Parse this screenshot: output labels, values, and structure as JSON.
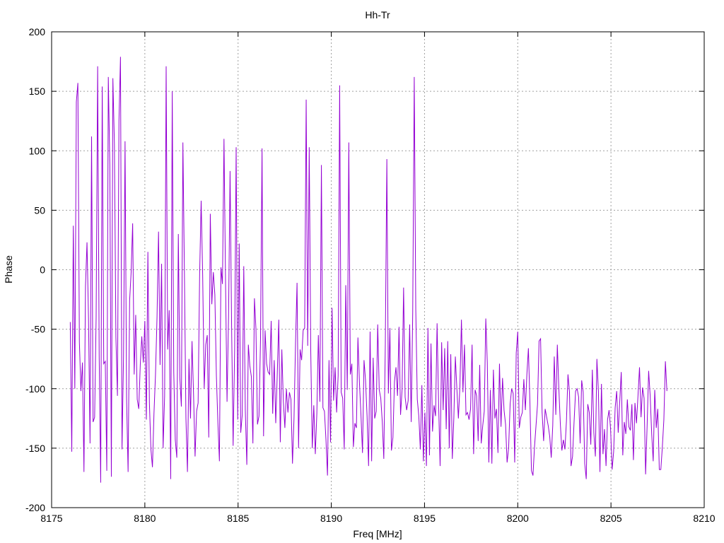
{
  "chart_data": {
    "type": "line",
    "title": "Hh-Tr",
    "xlabel": "Freq [MHz]",
    "ylabel": "Phase",
    "xlim": [
      8175,
      8210
    ],
    "ylim": [
      -200,
      200
    ],
    "x_ticks": [
      8175,
      8180,
      8185,
      8190,
      8195,
      8200,
      8205,
      8210
    ],
    "y_ticks": [
      -200,
      -150,
      -100,
      -50,
      0,
      50,
      100,
      150,
      200
    ],
    "grid": true,
    "line_color": "#9400d3",
    "series": [
      {
        "x_start": 8176.0,
        "x_end": 8208.0,
        "values": [
          -44,
          -153,
          37,
          -100,
          141,
          157,
          -61,
          -102,
          -78,
          -170,
          -14,
          23,
          -41,
          -146,
          112,
          -128,
          -124,
          -40,
          171,
          -72,
          -179,
          154,
          -79,
          -77,
          -169,
          162,
          88,
          -174,
          161,
          106,
          -57,
          -106,
          125,
          179,
          -151,
          -73,
          108,
          -108,
          -170,
          -26,
          -2,
          39,
          -88,
          -38,
          -109,
          -117,
          -80,
          -56,
          -78,
          -43,
          -126,
          15,
          -112,
          -151,
          -166,
          -121,
          -88,
          -40,
          32,
          -80,
          5,
          -150,
          -106,
          171,
          -67,
          -34,
          -176,
          150,
          -86,
          -143,
          -158,
          30,
          -91,
          -115,
          107,
          -3,
          -125,
          -170,
          -75,
          -125,
          -60,
          -105,
          -157,
          -119,
          -112,
          -4,
          58,
          -5,
          -100,
          -63,
          -55,
          -141,
          47,
          -29,
          -2,
          -21,
          -89,
          -129,
          -161,
          2,
          -12,
          110,
          -8,
          -111,
          -39,
          83,
          -47,
          -148,
          -67,
          103,
          -126,
          22,
          -137,
          -122,
          3,
          -118,
          -164,
          -63,
          -81,
          -90,
          -146,
          -24,
          -50,
          -130,
          -123,
          -59,
          102,
          -140,
          -51,
          -79,
          -86,
          -88,
          -43,
          -121,
          -76,
          -129,
          -88,
          -42,
          -145,
          -67,
          -111,
          -133,
          -100,
          -120,
          -103,
          -109,
          -163,
          -125,
          -62,
          -11,
          -150,
          -67,
          -76,
          -51,
          -49,
          143,
          -64,
          103,
          -68,
          -150,
          -114,
          -155,
          -121,
          -55,
          -111,
          88,
          -116,
          -119,
          -143,
          -173,
          -76,
          -145,
          -32,
          -110,
          -82,
          -120,
          -89,
          155,
          -103,
          -108,
          -151,
          -13,
          -101,
          107,
          -88,
          -79,
          -149,
          -129,
          -133,
          -57,
          -95,
          -122,
          -154,
          -76,
          -93,
          -123,
          -165,
          -52,
          -161,
          -74,
          -125,
          -119,
          -46,
          -101,
          -108,
          -128,
          -159,
          -62,
          93,
          -104,
          -49,
          -152,
          -141,
          -94,
          -82,
          -106,
          -48,
          -122,
          -101,
          -15,
          -107,
          -118,
          -110,
          -46,
          -128,
          -36,
          162,
          -33,
          -109,
          -123,
          -151,
          -97,
          -161,
          -120,
          -165,
          -49,
          -156,
          -62,
          -136,
          -114,
          -123,
          -45,
          -112,
          -165,
          -61,
          -118,
          -66,
          -134,
          -60,
          -150,
          -71,
          -159,
          -125,
          -73,
          -100,
          -125,
          -98,
          -42,
          -103,
          -63,
          -122,
          -120,
          -126,
          -117,
          -63,
          -155,
          -101,
          -106,
          -144,
          -80,
          -146,
          -131,
          -119,
          -41,
          -78,
          -162,
          -101,
          -163,
          -84,
          -125,
          -117,
          -154,
          -79,
          -132,
          -91,
          -118,
          -130,
          -162,
          -150,
          -113,
          -100,
          -104,
          -162,
          -70,
          -52,
          -133,
          -124,
          -120,
          -92,
          -118,
          -88,
          -66,
          -112,
          -169,
          -173,
          -149,
          -131,
          -113,
          -60,
          -58,
          -120,
          -144,
          -117,
          -124,
          -131,
          -140,
          -158,
          -131,
          -73,
          -122,
          -63,
          -100,
          -130,
          -152,
          -143,
          -151,
          -127,
          -88,
          -103,
          -165,
          -157,
          -128,
          -102,
          -100,
          -107,
          -146,
          -93,
          -103,
          -163,
          -176,
          -113,
          -120,
          -147,
          -84,
          -137,
          -157,
          -75,
          -102,
          -170,
          -96,
          -155,
          -134,
          -165,
          -126,
          -118,
          -134,
          -168,
          -153,
          -116,
          -102,
          -137,
          -111,
          -86,
          -156,
          -128,
          -138,
          -109,
          -132,
          -135,
          -113,
          -160,
          -112,
          -129,
          -106,
          -82,
          -124,
          -99,
          -108,
          -172,
          -131,
          -85,
          -106,
          -138,
          -161,
          -101,
          -133,
          -117,
          -168,
          -168,
          -149,
          -126,
          -77,
          -102
        ]
      }
    ]
  }
}
